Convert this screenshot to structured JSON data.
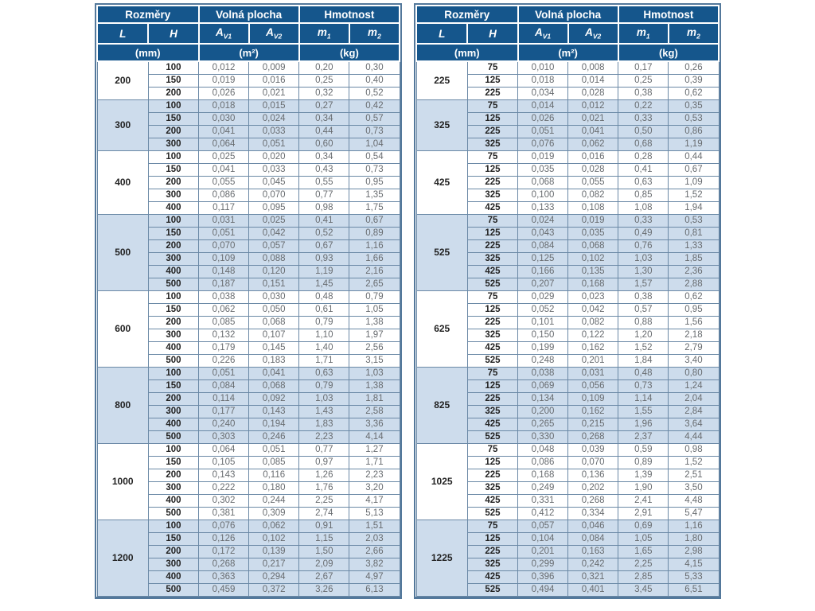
{
  "header": {
    "dimensions": "Rozměry",
    "free_area": "Volná plocha",
    "weight": "Hmotnost",
    "L": "L",
    "H": "H",
    "A": "A",
    "v1": "V1",
    "v2": "V2",
    "m": "m",
    "s1": "1",
    "s2": "2",
    "unit_mm": "(mm)",
    "unit_m2": "(m²)",
    "unit_kg": "(kg)"
  },
  "colors": {
    "header_bg": "#15568c",
    "header_text": "#ffffff",
    "group_alt_bg": "#cddcec",
    "grid_line": "#6b89a6",
    "outer_border": "#53789b",
    "value_text": "#686c70",
    "label_text": "#232323",
    "page_bg": "#ffffff"
  },
  "chart_data": [
    {
      "type": "table",
      "title": "Rozměry / Volná plocha / Hmotnost — left table",
      "columns": [
        "L (mm)",
        "H (mm)",
        "A_V1 (m²)",
        "A_V2 (m²)",
        "m_1 (kg)",
        "m_2 (kg)"
      ],
      "groups": [
        {
          "L": "200",
          "rows": [
            [
              "100",
              "0,012",
              "0,009",
              "0,20",
              "0,30"
            ],
            [
              "150",
              "0,019",
              "0,016",
              "0,25",
              "0,40"
            ],
            [
              "200",
              "0,026",
              "0,021",
              "0,32",
              "0,52"
            ]
          ]
        },
        {
          "L": "300",
          "rows": [
            [
              "100",
              "0,018",
              "0,015",
              "0,27",
              "0,42"
            ],
            [
              "150",
              "0,030",
              "0,024",
              "0,34",
              "0,57"
            ],
            [
              "200",
              "0,041",
              "0,033",
              "0,44",
              "0,73"
            ],
            [
              "300",
              "0,064",
              "0,051",
              "0,60",
              "1,04"
            ]
          ]
        },
        {
          "L": "400",
          "rows": [
            [
              "100",
              "0,025",
              "0,020",
              "0,34",
              "0,54"
            ],
            [
              "150",
              "0,041",
              "0,033",
              "0,43",
              "0,73"
            ],
            [
              "200",
              "0,055",
              "0,045",
              "0,55",
              "0,95"
            ],
            [
              "300",
              "0,086",
              "0,070",
              "0,77",
              "1,35"
            ],
            [
              "400",
              "0,117",
              "0,095",
              "0,98",
              "1,75"
            ]
          ]
        },
        {
          "L": "500",
          "rows": [
            [
              "100",
              "0,031",
              "0,025",
              "0,41",
              "0,67"
            ],
            [
              "150",
              "0,051",
              "0,042",
              "0,52",
              "0,89"
            ],
            [
              "200",
              "0,070",
              "0,057",
              "0,67",
              "1,16"
            ],
            [
              "300",
              "0,109",
              "0,088",
              "0,93",
              "1,66"
            ],
            [
              "400",
              "0,148",
              "0,120",
              "1,19",
              "2,16"
            ],
            [
              "500",
              "0,187",
              "0,151",
              "1,45",
              "2,65"
            ]
          ]
        },
        {
          "L": "600",
          "rows": [
            [
              "100",
              "0,038",
              "0,030",
              "0,48",
              "0,79"
            ],
            [
              "150",
              "0,062",
              "0,050",
              "0,61",
              "1,05"
            ],
            [
              "200",
              "0,085",
              "0,068",
              "0,79",
              "1,38"
            ],
            [
              "300",
              "0,132",
              "0,107",
              "1,10",
              "1,97"
            ],
            [
              "400",
              "0,179",
              "0,145",
              "1,40",
              "2,56"
            ],
            [
              "500",
              "0,226",
              "0,183",
              "1,71",
              "3,15"
            ]
          ]
        },
        {
          "L": "800",
          "rows": [
            [
              "100",
              "0,051",
              "0,041",
              "0,63",
              "1,03"
            ],
            [
              "150",
              "0,084",
              "0,068",
              "0,79",
              "1,38"
            ],
            [
              "200",
              "0,114",
              "0,092",
              "1,03",
              "1,81"
            ],
            [
              "300",
              "0,177",
              "0,143",
              "1,43",
              "2,58"
            ],
            [
              "400",
              "0,240",
              "0,194",
              "1,83",
              "3,36"
            ],
            [
              "500",
              "0,303",
              "0,246",
              "2,23",
              "4,14"
            ]
          ]
        },
        {
          "L": "1000",
          "rows": [
            [
              "100",
              "0,064",
              "0,051",
              "0,77",
              "1,27"
            ],
            [
              "150",
              "0,105",
              "0,085",
              "0,97",
              "1,71"
            ],
            [
              "200",
              "0,143",
              "0,116",
              "1,26",
              "2,23"
            ],
            [
              "300",
              "0,222",
              "0,180",
              "1,76",
              "3,20"
            ],
            [
              "400",
              "0,302",
              "0,244",
              "2,25",
              "4,17"
            ],
            [
              "500",
              "0,381",
              "0,309",
              "2,74",
              "5,13"
            ]
          ]
        },
        {
          "L": "1200",
          "rows": [
            [
              "100",
              "0,076",
              "0,062",
              "0,91",
              "1,51"
            ],
            [
              "150",
              "0,126",
              "0,102",
              "1,15",
              "2,03"
            ],
            [
              "200",
              "0,172",
              "0,139",
              "1,50",
              "2,66"
            ],
            [
              "300",
              "0,268",
              "0,217",
              "2,09",
              "3,82"
            ],
            [
              "400",
              "0,363",
              "0,294",
              "2,67",
              "4,97"
            ],
            [
              "500",
              "0,459",
              "0,372",
              "3,26",
              "6,13"
            ]
          ]
        }
      ]
    },
    {
      "type": "table",
      "title": "Rozměry / Volná plocha / Hmotnost — right table",
      "columns": [
        "L (mm)",
        "H (mm)",
        "A_V1 (m²)",
        "A_V2 (m²)",
        "m_1 (kg)",
        "m_2 (kg)"
      ],
      "groups": [
        {
          "L": "225",
          "rows": [
            [
              "75",
              "0,010",
              "0,008",
              "0,17",
              "0,26"
            ],
            [
              "125",
              "0,018",
              "0,014",
              "0,25",
              "0,39"
            ],
            [
              "225",
              "0,034",
              "0,028",
              "0,38",
              "0,62"
            ]
          ]
        },
        {
          "L": "325",
          "rows": [
            [
              "75",
              "0,014",
              "0,012",
              "0,22",
              "0,35"
            ],
            [
              "125",
              "0,026",
              "0,021",
              "0,33",
              "0,53"
            ],
            [
              "225",
              "0,051",
              "0,041",
              "0,50",
              "0,86"
            ],
            [
              "325",
              "0,076",
              "0,062",
              "0,68",
              "1,19"
            ]
          ]
        },
        {
          "L": "425",
          "rows": [
            [
              "75",
              "0,019",
              "0,016",
              "0,28",
              "0,44"
            ],
            [
              "125",
              "0,035",
              "0,028",
              "0,41",
              "0,67"
            ],
            [
              "225",
              "0,068",
              "0,055",
              "0,63",
              "1,09"
            ],
            [
              "325",
              "0,100",
              "0,082",
              "0,85",
              "1,52"
            ],
            [
              "425",
              "0,133",
              "0,108",
              "1,08",
              "1,94"
            ]
          ]
        },
        {
          "L": "525",
          "rows": [
            [
              "75",
              "0,024",
              "0,019",
              "0,33",
              "0,53"
            ],
            [
              "125",
              "0,043",
              "0,035",
              "0,49",
              "0,81"
            ],
            [
              "225",
              "0,084",
              "0,068",
              "0,76",
              "1,33"
            ],
            [
              "325",
              "0,125",
              "0,102",
              "1,03",
              "1,85"
            ],
            [
              "425",
              "0,166",
              "0,135",
              "1,30",
              "2,36"
            ],
            [
              "525",
              "0,207",
              "0,168",
              "1,57",
              "2,88"
            ]
          ]
        },
        {
          "L": "625",
          "rows": [
            [
              "75",
              "0,029",
              "0,023",
              "0,38",
              "0,62"
            ],
            [
              "125",
              "0,052",
              "0,042",
              "0,57",
              "0,95"
            ],
            [
              "225",
              "0,101",
              "0,082",
              "0,88",
              "1,56"
            ],
            [
              "325",
              "0,150",
              "0,122",
              "1,20",
              "2,18"
            ],
            [
              "425",
              "0,199",
              "0,162",
              "1,52",
              "2,79"
            ],
            [
              "525",
              "0,248",
              "0,201",
              "1,84",
              "3,40"
            ]
          ]
        },
        {
          "L": "825",
          "rows": [
            [
              "75",
              "0,038",
              "0,031",
              "0,48",
              "0,80"
            ],
            [
              "125",
              "0,069",
              "0,056",
              "0,73",
              "1,24"
            ],
            [
              "225",
              "0,134",
              "0,109",
              "1,14",
              "2,04"
            ],
            [
              "325",
              "0,200",
              "0,162",
              "1,55",
              "2,84"
            ],
            [
              "425",
              "0,265",
              "0,215",
              "1,96",
              "3,64"
            ],
            [
              "525",
              "0,330",
              "0,268",
              "2,37",
              "4,44"
            ]
          ]
        },
        {
          "L": "1025",
          "rows": [
            [
              "75",
              "0,048",
              "0,039",
              "0,59",
              "0,98"
            ],
            [
              "125",
              "0,086",
              "0,070",
              "0,89",
              "1,52"
            ],
            [
              "225",
              "0,168",
              "0,136",
              "1,39",
              "2,51"
            ],
            [
              "325",
              "0,249",
              "0,202",
              "1,90",
              "3,50"
            ],
            [
              "425",
              "0,331",
              "0,268",
              "2,41",
              "4,48"
            ],
            [
              "525",
              "0,412",
              "0,334",
              "2,91",
              "5,47"
            ]
          ]
        },
        {
          "L": "1225",
          "rows": [
            [
              "75",
              "0,057",
              "0,046",
              "0,69",
              "1,16"
            ],
            [
              "125",
              "0,104",
              "0,084",
              "1,05",
              "1,80"
            ],
            [
              "225",
              "0,201",
              "0,163",
              "1,65",
              "2,98"
            ],
            [
              "325",
              "0,299",
              "0,242",
              "2,25",
              "4,15"
            ],
            [
              "425",
              "0,396",
              "0,321",
              "2,85",
              "5,33"
            ],
            [
              "525",
              "0,494",
              "0,401",
              "3,45",
              "6,51"
            ]
          ]
        }
      ]
    }
  ]
}
